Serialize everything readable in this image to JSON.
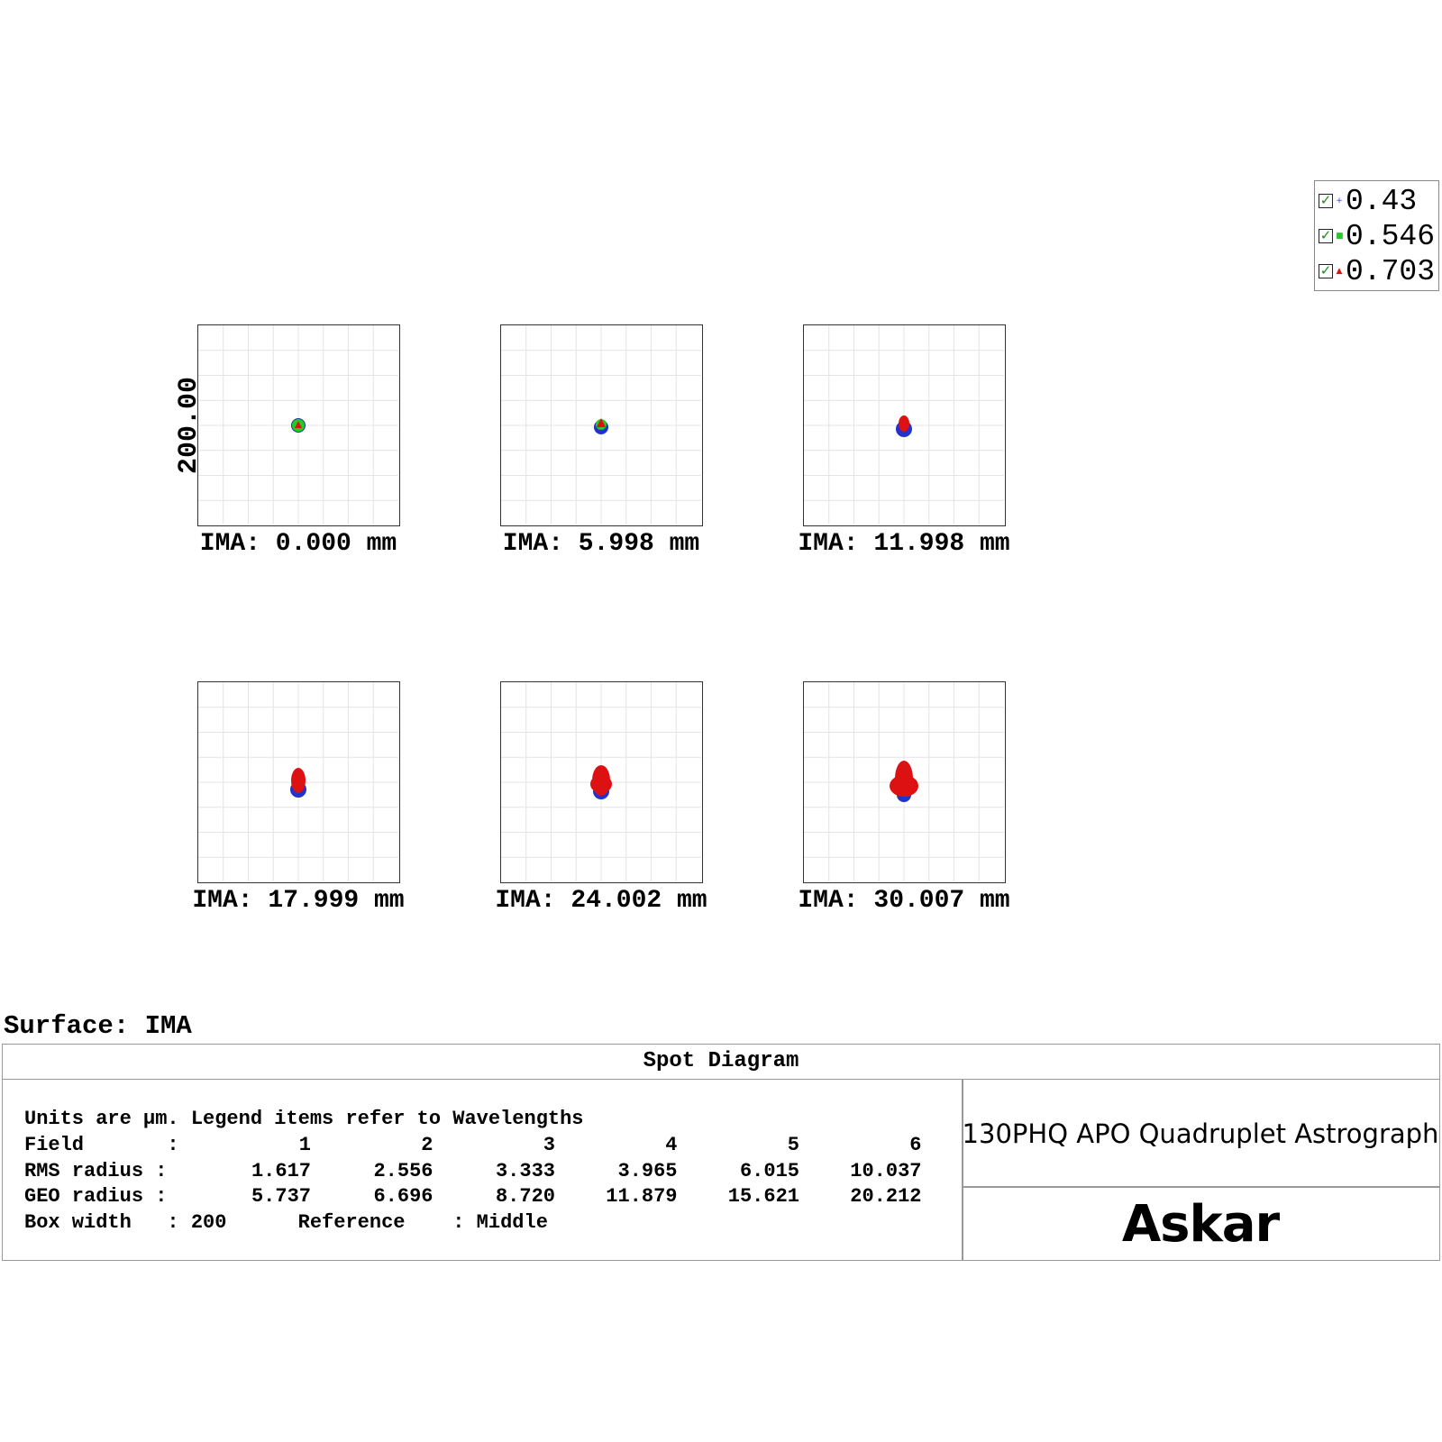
{
  "legend": {
    "items": [
      {
        "label": "0.43",
        "color": "#3344cc",
        "marker": "+",
        "checked": true
      },
      {
        "label": "0.546",
        "color": "#22cc22",
        "marker": "■",
        "checked": true
      },
      {
        "label": "0.703",
        "color": "#dd1111",
        "marker": "▲",
        "checked": true
      }
    ]
  },
  "y_axis_label": "200.00",
  "surface_label": "Surface: IMA",
  "chart_data": {
    "type": "scatter",
    "title": "Spot Diagram",
    "fields": [
      {
        "label": "IMA: 0.000 mm"
      },
      {
        "label": "IMA: 5.998 mm"
      },
      {
        "label": "IMA: 11.998 mm"
      },
      {
        "label": "IMA: 17.999 mm"
      },
      {
        "label": "IMA: 24.002 mm"
      },
      {
        "label": "IMA: 30.007 mm"
      }
    ],
    "box_width": 200,
    "grid": true
  },
  "info": {
    "title": "Spot Diagram",
    "units_line": "Units are µm. Legend items refer to Wavelengths",
    "field_label": "Field       :",
    "rms_label": "RMS radius :",
    "geo_label": "GEO radius :",
    "field_numbers": [
      "1",
      "2",
      "3",
      "4",
      "5",
      "6"
    ],
    "rms": [
      "1.617",
      "2.556",
      "3.333",
      "3.965",
      "6.015",
      "10.037"
    ],
    "geo": [
      "5.737",
      "6.696",
      "8.720",
      "11.879",
      "15.621",
      "20.212"
    ],
    "box_width_line": "Box width   : 200      Reference    : Middle"
  },
  "product": "130PHQ APO Quadruplet Astrograph",
  "logo": "Askar"
}
